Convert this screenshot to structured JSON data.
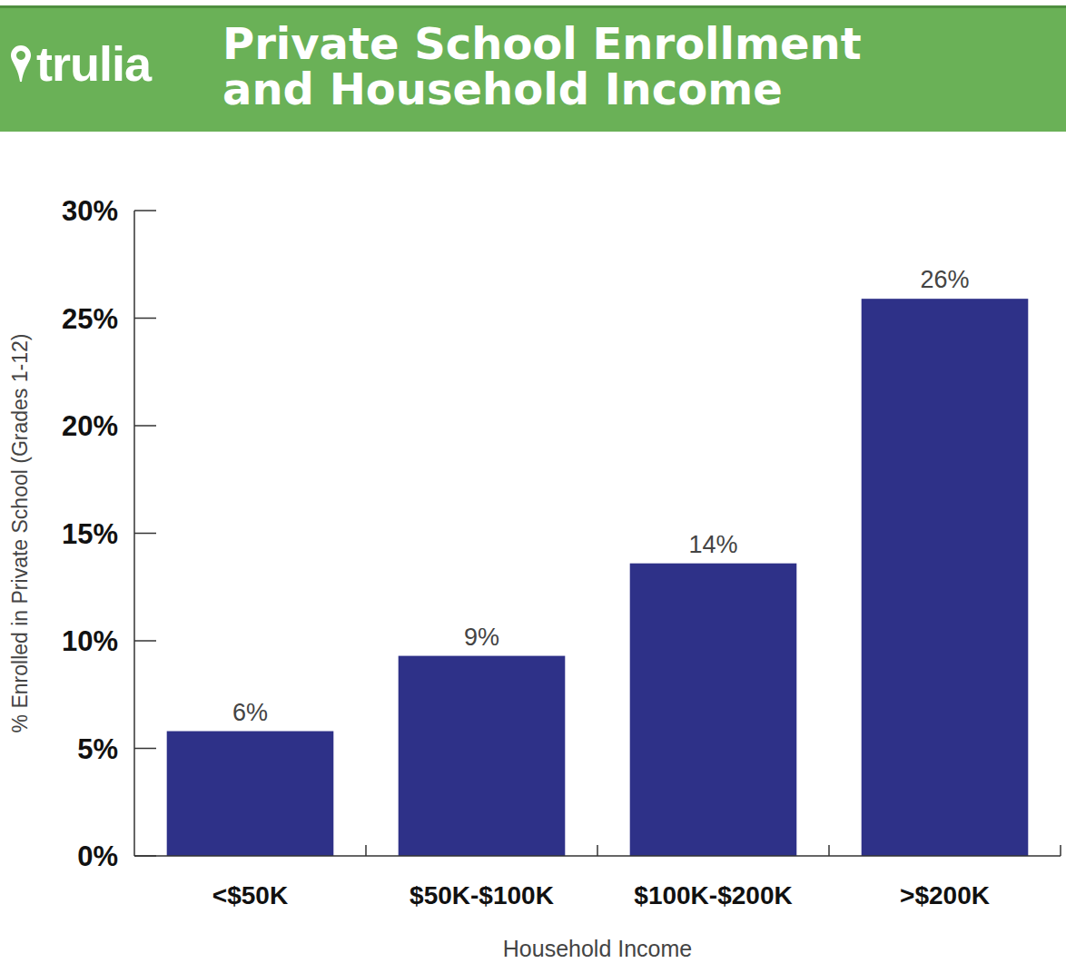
{
  "chart_data": {
    "type": "bar",
    "title": "Private School Enrollment and Household Income",
    "source": "trulia",
    "x_label": "Household Income",
    "y_label": "% Enrolled in Private School (Grades 1-12)",
    "categories": [
      "<$50K",
      "$50K-$100K",
      "$100K-$200K",
      ">$200K"
    ],
    "values": [
      5.8,
      9.3,
      13.6,
      25.9
    ],
    "value_labels": [
      "6%",
      "9%",
      "14%",
      "26%"
    ],
    "color": "#2e3188",
    "ylim": [
      0,
      30
    ],
    "yticks": [
      {
        "value": 0,
        "label": "0%"
      },
      {
        "value": 5,
        "label": "5%"
      },
      {
        "value": 10,
        "label": "10%"
      },
      {
        "value": 15,
        "label": "15%"
      },
      {
        "value": 20,
        "label": "20%"
      },
      {
        "value": 25,
        "label": "25%"
      },
      {
        "value": 30,
        "label": "30%"
      }
    ],
    "grid": false,
    "data_labels": true
  }
}
